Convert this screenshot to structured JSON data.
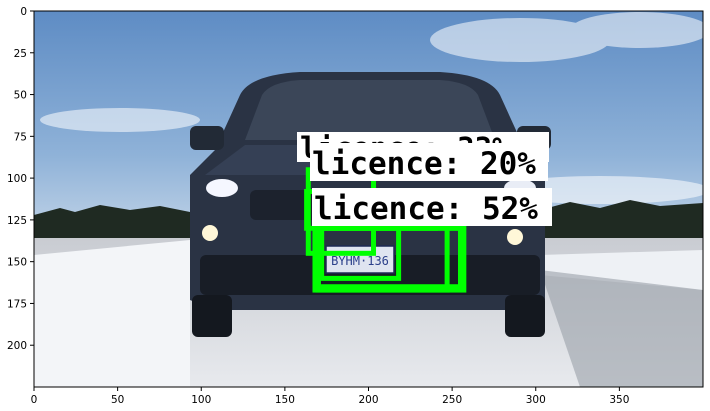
{
  "plot": {
    "x_ticks": [
      "0",
      "50",
      "100",
      "150",
      "200",
      "250",
      "300",
      "350"
    ],
    "y_ticks": [
      "0",
      "25",
      "50",
      "75",
      "100",
      "125",
      "150",
      "175",
      "200"
    ],
    "x_tick_values": [
      0,
      50,
      100,
      150,
      200,
      250,
      300,
      350
    ],
    "y_tick_values": [
      0,
      25,
      50,
      75,
      100,
      125,
      150,
      175,
      200
    ],
    "xlim": [
      0,
      400
    ],
    "ylim": [
      225,
      0
    ],
    "frame_color": "#000000"
  },
  "image": {
    "subject": "dark SUV on snowy road with blue sky",
    "plate_text": "BYHM·136",
    "sky_color": "#7aa2cf",
    "snow_color": "#e4e8ee",
    "car_color": "#2a3344"
  },
  "detections": {
    "box_color": "#00ff00",
    "labels": [
      {
        "text": "licence: 20%"
      },
      {
        "text": "licence: 52%"
      },
      {
        "text": "licence: 33%"
      }
    ],
    "boxes": [
      {
        "x0": 164,
        "y0": 95,
        "x1": 203,
        "y1": 145
      },
      {
        "x0": 163,
        "y0": 108,
        "x1": 240,
        "y1": 130
      },
      {
        "x0": 170,
        "y0": 130,
        "x1": 255,
        "y1": 165
      },
      {
        "x0": 172,
        "y0": 130,
        "x1": 218,
        "y1": 160
      },
      {
        "x0": 170,
        "y0": 130,
        "x1": 257,
        "y1": 167
      },
      {
        "x0": 168,
        "y0": 125,
        "x1": 247,
        "y1": 167
      }
    ]
  }
}
